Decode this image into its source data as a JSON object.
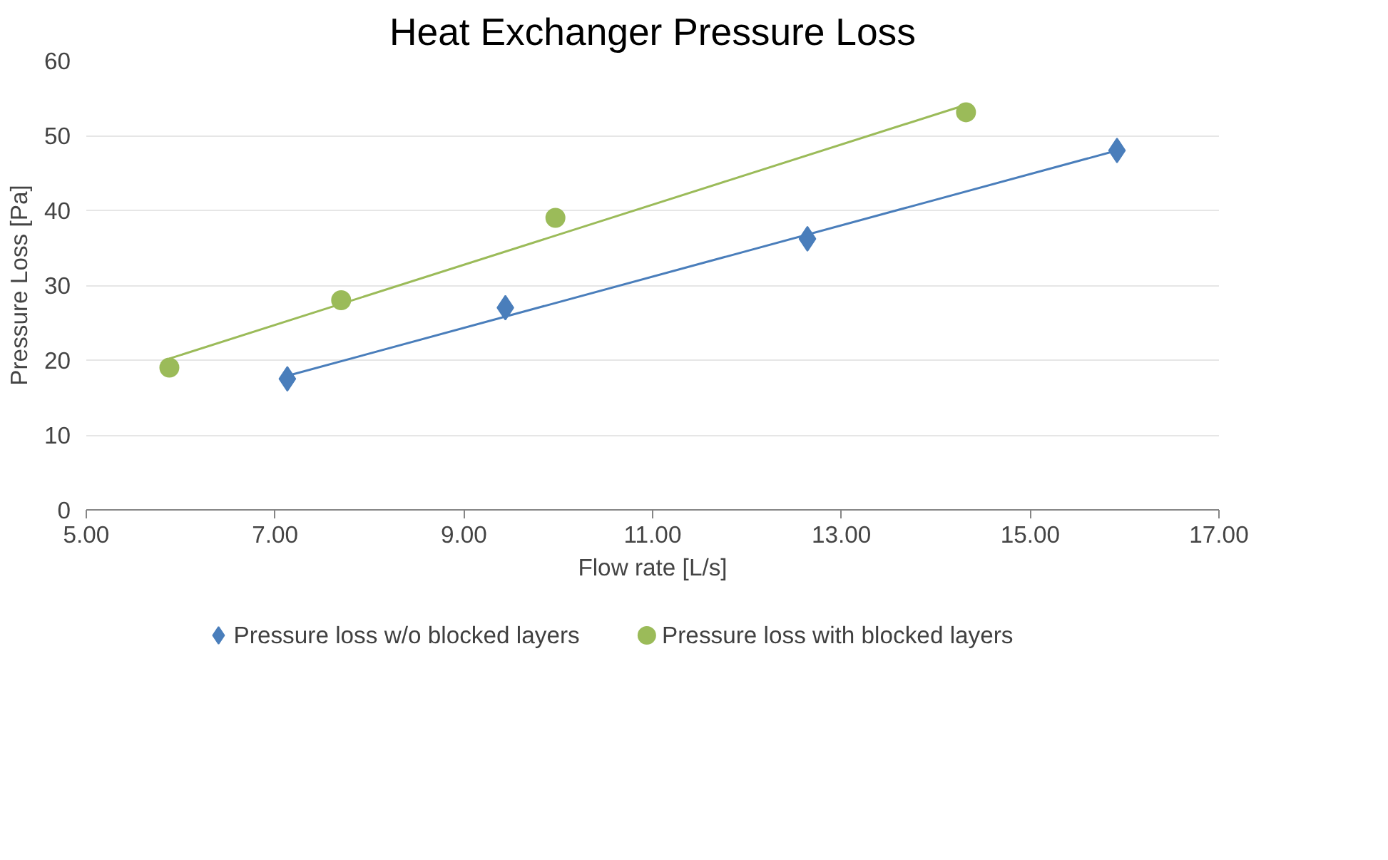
{
  "chart_data": {
    "type": "scatter",
    "title": "Heat Exchanger Pressure Loss",
    "xlabel": "Flow rate [L/s]",
    "ylabel": "Pressure Loss [Pa]",
    "xlim": [
      5,
      17
    ],
    "xticks": [
      {
        "value": 5,
        "label": "5.00"
      },
      {
        "value": 7,
        "label": "7.00"
      },
      {
        "value": 9,
        "label": "9.00"
      },
      {
        "value": 11,
        "label": "11.00"
      },
      {
        "value": 13,
        "label": "13.00"
      },
      {
        "value": 15,
        "label": "15.00"
      },
      {
        "value": 17,
        "label": "17.00"
      }
    ],
    "ylim": [
      0,
      60
    ],
    "yticks": [
      0,
      10,
      20,
      30,
      40,
      50,
      60
    ],
    "grid": "y",
    "legend": "bottom",
    "series": [
      {
        "name": "Pressure loss w/o blocked layers",
        "color": "#4a7ebb",
        "marker": "diamond",
        "x": [
          7.13,
          9.44,
          12.64,
          15.92
        ],
        "values": [
          17.5,
          27.0,
          36.2,
          48.0
        ]
      },
      {
        "name": "Pressure loss with blocked layers",
        "color": "#9bbb59",
        "marker": "circle",
        "x": [
          5.88,
          7.7,
          9.97,
          14.32
        ],
        "values": [
          19.0,
          28.0,
          39.0,
          53.1
        ]
      },
      {
        "type": "line",
        "color": "#4a7ebb",
        "marker": "none",
        "x": [
          7.13,
          15.92
        ],
        "values": [
          17.9,
          48.0
        ]
      },
      {
        "type": "line",
        "color": "#9bbb59",
        "marker": "none",
        "x": [
          5.88,
          14.32
        ],
        "values": [
          20.2,
          54.1
        ]
      }
    ]
  }
}
